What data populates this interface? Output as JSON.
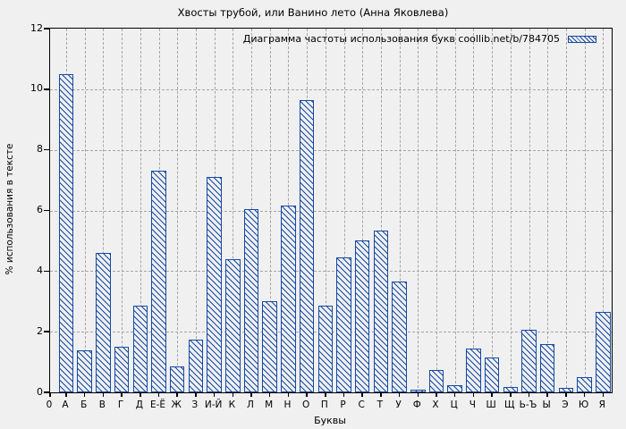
{
  "chart_data": {
    "type": "bar",
    "title": "Хвосты трубой, или Ванино лето (Анна Яковлева)",
    "legend": "Диаграмма частоты использования букв coollib.net/b/784705",
    "legend_position": "top-right-inside",
    "xlabel": "Буквы",
    "ylabel": "% использования в тексте",
    "origin_tick_label": "0",
    "ylim": [
      0,
      12
    ],
    "yticks": [
      0,
      2,
      4,
      6,
      8,
      10,
      12
    ],
    "grid": true,
    "categories": [
      "А",
      "Б",
      "В",
      "Г",
      "Д",
      "Е-Ё",
      "Ж",
      "З",
      "И-Й",
      "К",
      "Л",
      "М",
      "Н",
      "О",
      "П",
      "Р",
      "С",
      "Т",
      "У",
      "Ф",
      "Х",
      "Ц",
      "Ч",
      "Ш",
      "Щ",
      "Ь-Ъ",
      "Ы",
      "Э",
      "Ю",
      "Я"
    ],
    "values": [
      10.5,
      1.4,
      4.6,
      1.5,
      2.85,
      7.3,
      0.85,
      1.75,
      7.1,
      4.4,
      6.05,
      3.0,
      6.15,
      9.65,
      2.85,
      4.45,
      5.0,
      5.35,
      3.65,
      0.08,
      0.75,
      0.25,
      1.45,
      1.15,
      0.17,
      2.05,
      1.6,
      0.15,
      0.5,
      2.65
    ],
    "colors": {
      "bar": "#1549a5",
      "background": "#f0f0f0",
      "grid": "#a6a6a6",
      "axis": "#000000",
      "text": "#000000"
    },
    "hatch": "diagonal-down"
  }
}
